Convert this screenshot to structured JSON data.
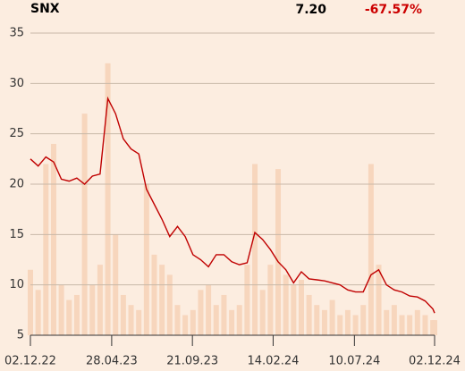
{
  "chart_data": {
    "type": "line",
    "title": "SNX",
    "last_price": "7.20",
    "change": "-67.57%",
    "change_color": "#cc0000",
    "x": [
      "02.12.22",
      "16.12.22",
      "30.12.22",
      "13.01.23",
      "27.01.23",
      "10.02.23",
      "24.02.23",
      "10.03.23",
      "24.03.23",
      "07.04.23",
      "21.04.23",
      "05.05.23",
      "19.05.23",
      "02.06.23",
      "16.06.23",
      "30.06.23",
      "14.07.23",
      "28.07.23",
      "11.08.23",
      "25.08.23",
      "08.09.23",
      "22.09.23",
      "06.10.23",
      "20.10.23",
      "03.11.23",
      "17.11.23",
      "01.12.23",
      "15.12.23",
      "29.12.23",
      "12.01.24",
      "26.01.24",
      "09.02.24",
      "23.02.24",
      "08.03.24",
      "22.03.24",
      "05.04.24",
      "19.04.24",
      "03.05.24",
      "17.05.24",
      "31.05.24",
      "14.06.24",
      "28.06.24",
      "12.07.24",
      "26.07.24",
      "09.08.24",
      "23.08.24",
      "06.09.24",
      "20.09.24",
      "04.10.24",
      "18.10.24",
      "01.11.24",
      "15.11.24",
      "29.11.24",
      "02.12.24"
    ],
    "series": [
      {
        "color": "#c00000",
        "values": [
          22.5,
          21.8,
          22.7,
          22.2,
          20.5,
          20.3,
          20.6,
          20.0,
          20.8,
          21.0,
          28.5,
          27.0,
          24.5,
          23.5,
          23.0,
          19.5,
          18.0,
          16.5,
          14.8,
          15.8,
          14.8,
          13.0,
          12.5,
          11.8,
          13.0,
          13.0,
          12.3,
          12.0,
          12.2,
          15.2,
          14.5,
          13.5,
          12.3,
          11.5,
          10.2,
          11.3,
          10.6,
          10.5,
          10.4,
          10.2,
          10.0,
          9.5,
          9.3,
          9.3,
          11.0,
          11.5,
          10.0,
          9.5,
          9.3,
          8.9,
          8.8,
          8.4,
          7.6,
          7.2
        ]
      },
      {
        "color": "#f7d6bd",
        "values": [
          11.5,
          9.5,
          22.0,
          24.0,
          10.0,
          8.5,
          9.0,
          27.0,
          10.0,
          12.0,
          32.0,
          15.0,
          9.0,
          8.0,
          7.5,
          20.0,
          13.0,
          12.0,
          11.0,
          8.0,
          7.0,
          7.5,
          9.5,
          10.0,
          8.0,
          9.0,
          7.5,
          8.0,
          12.0,
          22.0,
          9.5,
          12.0,
          21.5,
          11.0,
          10.0,
          10.5,
          9.0,
          8.0,
          7.5,
          8.5,
          7.0,
          7.5,
          7.0,
          8.0,
          22.0,
          12.0,
          7.5,
          8.0,
          7.0,
          7.0,
          7.5,
          7.0,
          6.5,
          6.5
        ]
      }
    ],
    "xticks": [
      "02.12.22",
      "28.04.23",
      "21.09.23",
      "14.02.24",
      "10.07.24",
      "02.12.24"
    ],
    "ylim": [
      5,
      35
    ],
    "yticks": [
      5,
      10,
      15,
      20,
      25,
      30,
      35
    ],
    "grid": true
  }
}
